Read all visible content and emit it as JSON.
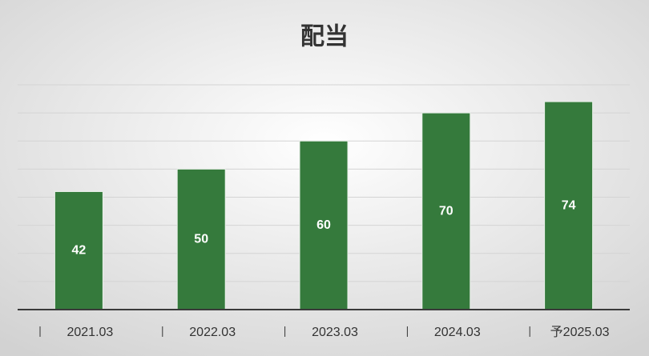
{
  "chart_data": {
    "type": "bar",
    "title": "配当",
    "categories": [
      "2021.03",
      "2022.03",
      "2023.03",
      "2024.03",
      "予2025.03"
    ],
    "values": [
      42,
      50,
      60,
      70,
      74
    ],
    "color": "#357a3c",
    "ylim": [
      0,
      80
    ],
    "yticks": [
      0,
      10,
      20,
      30,
      40,
      50,
      60,
      70,
      80
    ],
    "grid": true
  }
}
